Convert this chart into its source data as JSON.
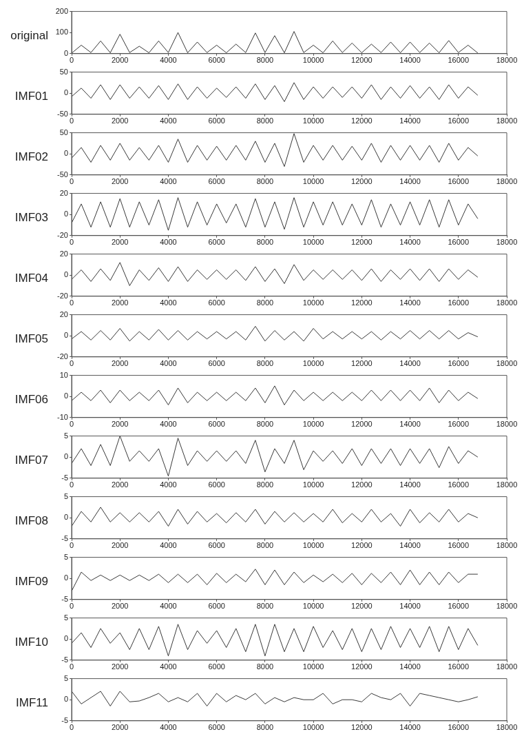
{
  "chart_data": [
    {
      "type": "line",
      "ylabel": "original",
      "color": "#222222",
      "xlim": [
        0,
        18000
      ],
      "xticks": [
        0,
        2000,
        4000,
        6000,
        8000,
        10000,
        12000,
        14000,
        16000,
        18000
      ],
      "ylim": [
        0,
        200
      ],
      "yticks": [
        0,
        100,
        200
      ],
      "x": [
        0,
        400,
        800,
        1200,
        1600,
        2000,
        2400,
        2800,
        3200,
        3600,
        4000,
        4400,
        4800,
        5200,
        5600,
        6000,
        6400,
        6800,
        7200,
        7600,
        8000,
        8400,
        8800,
        9200,
        9600,
        10000,
        10400,
        10800,
        11200,
        11600,
        12000,
        12400,
        12800,
        13200,
        13600,
        14000,
        14400,
        14800,
        15200,
        15600,
        16000,
        16400,
        16800
      ],
      "values": [
        2,
        40,
        5,
        60,
        4,
        92,
        5,
        35,
        4,
        60,
        5,
        100,
        4,
        55,
        5,
        40,
        4,
        45,
        5,
        98,
        5,
        85,
        4,
        105,
        5,
        40,
        4,
        60,
        5,
        50,
        4,
        45,
        5,
        55,
        4,
        55,
        5,
        50,
        4,
        62,
        5,
        40,
        3
      ]
    },
    {
      "type": "line",
      "ylabel": "IMF01",
      "color": "#222222",
      "xlim": [
        0,
        18000
      ],
      "xticks": [
        0,
        2000,
        4000,
        6000,
        8000,
        10000,
        12000,
        14000,
        16000,
        18000
      ],
      "ylim": [
        -50,
        50
      ],
      "yticks": [
        -50,
        0,
        50
      ],
      "x": [
        0,
        400,
        800,
        1200,
        1600,
        2000,
        2400,
        2800,
        3200,
        3600,
        4000,
        4400,
        4800,
        5200,
        5600,
        6000,
        6400,
        6800,
        7200,
        7600,
        8000,
        8400,
        8800,
        9200,
        9600,
        10000,
        10400,
        10800,
        11200,
        11600,
        12000,
        12400,
        12800,
        13200,
        13600,
        14000,
        14400,
        14800,
        15200,
        15600,
        16000,
        16400,
        16800
      ],
      "values": [
        -8,
        12,
        -12,
        20,
        -15,
        20,
        -12,
        15,
        -12,
        18,
        -15,
        22,
        -15,
        15,
        -12,
        12,
        -10,
        15,
        -12,
        22,
        -15,
        18,
        -20,
        25,
        -15,
        15,
        -12,
        15,
        -10,
        15,
        -12,
        20,
        -15,
        15,
        -12,
        18,
        -12,
        15,
        -15,
        20,
        -12,
        15,
        -5
      ]
    },
    {
      "type": "line",
      "ylabel": "IMF02",
      "color": "#222222",
      "xlim": [
        0,
        18000
      ],
      "xticks": [
        0,
        2000,
        4000,
        6000,
        8000,
        10000,
        12000,
        14000,
        16000,
        18000
      ],
      "ylim": [
        -50,
        50
      ],
      "yticks": [
        -50,
        0,
        50
      ],
      "x": [
        0,
        400,
        800,
        1200,
        1600,
        2000,
        2400,
        2800,
        3200,
        3600,
        4000,
        4400,
        4800,
        5200,
        5600,
        6000,
        6400,
        6800,
        7200,
        7600,
        8000,
        8400,
        8800,
        9200,
        9600,
        10000,
        10400,
        10800,
        11200,
        11600,
        12000,
        12400,
        12800,
        13200,
        13600,
        14000,
        14400,
        14800,
        15200,
        15600,
        16000,
        16400,
        16800
      ],
      "values": [
        -10,
        15,
        -20,
        20,
        -15,
        25,
        -15,
        15,
        -15,
        20,
        -20,
        35,
        -20,
        20,
        -15,
        18,
        -15,
        20,
        -15,
        30,
        -20,
        25,
        -30,
        48,
        -20,
        20,
        -15,
        20,
        -15,
        18,
        -15,
        25,
        -20,
        20,
        -15,
        20,
        -15,
        20,
        -20,
        25,
        -15,
        15,
        -5
      ]
    },
    {
      "type": "line",
      "ylabel": "IMF03",
      "color": "#222222",
      "xlim": [
        0,
        18000
      ],
      "xticks": [
        0,
        2000,
        4000,
        6000,
        8000,
        10000,
        12000,
        14000,
        16000,
        18000
      ],
      "ylim": [
        -20,
        20
      ],
      "yticks": [
        -20,
        0,
        20
      ],
      "x": [
        0,
        400,
        800,
        1200,
        1600,
        2000,
        2400,
        2800,
        3200,
        3600,
        4000,
        4400,
        4800,
        5200,
        5600,
        6000,
        6400,
        6800,
        7200,
        7600,
        8000,
        8400,
        8800,
        9200,
        9600,
        10000,
        10400,
        10800,
        11200,
        11600,
        12000,
        12400,
        12800,
        13200,
        13600,
        14000,
        14400,
        14800,
        15200,
        15600,
        16000,
        16400,
        16800
      ],
      "values": [
        -8,
        10,
        -12,
        12,
        -12,
        15,
        -12,
        12,
        -10,
        14,
        -15,
        16,
        -12,
        12,
        -10,
        10,
        -8,
        10,
        -12,
        15,
        -12,
        12,
        -14,
        16,
        -12,
        12,
        -10,
        12,
        -10,
        10,
        -10,
        14,
        -12,
        10,
        -10,
        12,
        -10,
        14,
        -12,
        14,
        -10,
        10,
        -4
      ]
    },
    {
      "type": "line",
      "ylabel": "IMF04",
      "color": "#222222",
      "xlim": [
        0,
        18000
      ],
      "xticks": [
        0,
        2000,
        4000,
        6000,
        8000,
        10000,
        12000,
        14000,
        16000,
        18000
      ],
      "ylim": [
        -20,
        20
      ],
      "yticks": [
        -20,
        0,
        20
      ],
      "x": [
        0,
        400,
        800,
        1200,
        1600,
        2000,
        2400,
        2800,
        3200,
        3600,
        4000,
        4400,
        4800,
        5200,
        5600,
        6000,
        6400,
        6800,
        7200,
        7600,
        8000,
        8400,
        8800,
        9200,
        9600,
        10000,
        10400,
        10800,
        11200,
        11600,
        12000,
        12400,
        12800,
        13200,
        13600,
        14000,
        14400,
        14800,
        15200,
        15600,
        16000,
        16400,
        16800
      ],
      "values": [
        -4,
        5,
        -6,
        6,
        -5,
        12,
        -10,
        5,
        -5,
        7,
        -6,
        8,
        -6,
        5,
        -4,
        5,
        -4,
        5,
        -5,
        8,
        -6,
        6,
        -8,
        10,
        -5,
        5,
        -4,
        5,
        -4,
        5,
        -5,
        6,
        -6,
        5,
        -4,
        6,
        -5,
        6,
        -6,
        6,
        -4,
        5,
        -2
      ]
    },
    {
      "type": "line",
      "ylabel": "IMF05",
      "color": "#222222",
      "xlim": [
        0,
        18000
      ],
      "xticks": [
        0,
        2000,
        4000,
        6000,
        8000,
        10000,
        12000,
        14000,
        16000,
        18000
      ],
      "ylim": [
        -20,
        20
      ],
      "yticks": [
        -20,
        0,
        20
      ],
      "x": [
        0,
        400,
        800,
        1200,
        1600,
        2000,
        2400,
        2800,
        3200,
        3600,
        4000,
        4400,
        4800,
        5200,
        5600,
        6000,
        6400,
        6800,
        7200,
        7600,
        8000,
        8400,
        8800,
        9200,
        9600,
        10000,
        10400,
        10800,
        11200,
        11600,
        12000,
        12400,
        12800,
        13200,
        13600,
        14000,
        14400,
        14800,
        15200,
        15600,
        16000,
        16400,
        16800
      ],
      "values": [
        -3,
        4,
        -4,
        5,
        -4,
        7,
        -5,
        4,
        -4,
        6,
        -4,
        5,
        -4,
        4,
        -3,
        4,
        -3,
        4,
        -4,
        9,
        -5,
        5,
        -4,
        4,
        -5,
        7,
        -3,
        4,
        -3,
        4,
        -3,
        4,
        -4,
        4,
        -3,
        5,
        -3,
        5,
        -3,
        5,
        -3,
        3,
        -1
      ]
    },
    {
      "type": "line",
      "ylabel": "IMF06",
      "color": "#222222",
      "xlim": [
        0,
        18000
      ],
      "xticks": [
        0,
        2000,
        4000,
        6000,
        8000,
        10000,
        12000,
        14000,
        16000,
        18000
      ],
      "ylim": [
        -10,
        10
      ],
      "yticks": [
        -10,
        0,
        10
      ],
      "x": [
        0,
        400,
        800,
        1200,
        1600,
        2000,
        2400,
        2800,
        3200,
        3600,
        4000,
        4400,
        4800,
        5200,
        5600,
        6000,
        6400,
        6800,
        7200,
        7600,
        8000,
        8400,
        8800,
        9200,
        9600,
        10000,
        10400,
        10800,
        11200,
        11600,
        12000,
        12400,
        12800,
        13200,
        13600,
        14000,
        14400,
        14800,
        15200,
        15600,
        16000,
        16400,
        16800
      ],
      "values": [
        -2,
        2,
        -2,
        3,
        -3,
        3,
        -2,
        2,
        -2,
        3,
        -4,
        4,
        -3,
        2,
        -2,
        2,
        -2,
        2,
        -2,
        4,
        -3,
        5,
        -4,
        3,
        -2,
        2,
        -2,
        2,
        -2,
        2,
        -2,
        3,
        -2,
        3,
        -2,
        3,
        -2,
        4,
        -3,
        3,
        -2,
        2,
        -1
      ]
    },
    {
      "type": "line",
      "ylabel": "IMF07",
      "color": "#222222",
      "xlim": [
        0,
        18000
      ],
      "xticks": [
        0,
        2000,
        4000,
        6000,
        8000,
        10000,
        12000,
        14000,
        16000,
        18000
      ],
      "ylim": [
        -5,
        5
      ],
      "yticks": [
        -5,
        0,
        5
      ],
      "x": [
        0,
        400,
        800,
        1200,
        1600,
        2000,
        2400,
        2800,
        3200,
        3600,
        4000,
        4400,
        4800,
        5200,
        5600,
        6000,
        6400,
        6800,
        7200,
        7600,
        8000,
        8400,
        8800,
        9200,
        9600,
        10000,
        10400,
        10800,
        11200,
        11600,
        12000,
        12400,
        12800,
        13200,
        13600,
        14000,
        14400,
        14800,
        15200,
        15600,
        16000,
        16400,
        16800
      ],
      "values": [
        -1.5,
        2,
        -2,
        3,
        -2,
        5,
        -1,
        1.5,
        -1,
        2,
        -4.5,
        4.5,
        -2,
        1.5,
        -1,
        1.5,
        -1,
        1.5,
        -1.5,
        4,
        -3.5,
        2,
        -1.5,
        4,
        -3,
        1.5,
        -1,
        1.5,
        -1.5,
        2,
        -2,
        2,
        -1.5,
        2,
        -2,
        2,
        -1.5,
        2,
        -2.5,
        2.5,
        -1.5,
        1.5,
        0
      ]
    },
    {
      "type": "line",
      "ylabel": "IMF08",
      "color": "#222222",
      "xlim": [
        0,
        18000
      ],
      "xticks": [
        0,
        2000,
        4000,
        6000,
        8000,
        10000,
        12000,
        14000,
        16000,
        18000
      ],
      "ylim": [
        -5,
        5
      ],
      "yticks": [
        -5,
        0,
        5
      ],
      "x": [
        0,
        400,
        800,
        1200,
        1600,
        2000,
        2400,
        2800,
        3200,
        3600,
        4000,
        4400,
        4800,
        5200,
        5600,
        6000,
        6400,
        6800,
        7200,
        7600,
        8000,
        8400,
        8800,
        9200,
        9600,
        10000,
        10400,
        10800,
        11200,
        11600,
        12000,
        12400,
        12800,
        13200,
        13600,
        14000,
        14400,
        14800,
        15200,
        15600,
        16000,
        16400,
        16800
      ],
      "values": [
        -2,
        1.5,
        -1,
        2.5,
        -1,
        1.2,
        -1,
        1.2,
        -1,
        1.5,
        -2,
        2,
        -1.5,
        1.5,
        -1,
        1,
        -1.2,
        1.2,
        -1,
        2,
        -1.5,
        1.5,
        -1,
        1.2,
        -1,
        1,
        -1,
        2,
        -1.2,
        1,
        -1,
        2,
        -1,
        1,
        -2,
        2,
        -1.2,
        1.2,
        -1,
        2,
        -1,
        1,
        0
      ]
    },
    {
      "type": "line",
      "ylabel": "IMF09",
      "color": "#222222",
      "xlim": [
        0,
        18000
      ],
      "xticks": [
        0,
        2000,
        4000,
        6000,
        8000,
        10000,
        12000,
        14000,
        16000,
        18000
      ],
      "ylim": [
        -5,
        5
      ],
      "yticks": [
        -5,
        0,
        5
      ],
      "x": [
        0,
        400,
        800,
        1200,
        1600,
        2000,
        2400,
        2800,
        3200,
        3600,
        4000,
        4400,
        4800,
        5200,
        5600,
        6000,
        6400,
        6800,
        7200,
        7600,
        8000,
        8400,
        8800,
        9200,
        9600,
        10000,
        10400,
        10800,
        11200,
        11600,
        12000,
        12400,
        12800,
        13200,
        13600,
        14000,
        14400,
        14800,
        15200,
        15600,
        16000,
        16400,
        16800
      ],
      "values": [
        -3,
        1.5,
        -0.5,
        0.8,
        -0.5,
        0.8,
        -0.5,
        0.8,
        -0.5,
        1,
        -1,
        1,
        -1,
        1,
        -1.5,
        1.2,
        -1,
        1,
        -0.8,
        2.2,
        -1.5,
        2,
        -1.5,
        1.5,
        -1,
        0.8,
        -0.8,
        1,
        -1,
        1.2,
        -1.5,
        1.2,
        -1,
        1.5,
        -1.5,
        2,
        -1.5,
        1.5,
        -1.5,
        1.5,
        -1,
        1,
        1
      ]
    },
    {
      "type": "line",
      "ylabel": "IMF10",
      "color": "#222222",
      "xlim": [
        0,
        18000
      ],
      "xticks": [
        0,
        2000,
        4000,
        6000,
        8000,
        10000,
        12000,
        14000,
        16000,
        18000
      ],
      "ylim": [
        -5,
        5
      ],
      "yticks": [
        -5,
        0,
        5
      ],
      "x": [
        0,
        400,
        800,
        1200,
        1600,
        2000,
        2400,
        2800,
        3200,
        3600,
        4000,
        4400,
        4800,
        5200,
        5600,
        6000,
        6400,
        6800,
        7200,
        7600,
        8000,
        8400,
        8800,
        9200,
        9600,
        10000,
        10400,
        10800,
        11200,
        11600,
        12000,
        12400,
        12800,
        13200,
        13600,
        14000,
        14400,
        14800,
        15200,
        15600,
        16000,
        16400,
        16800
      ],
      "values": [
        -1,
        1.5,
        -2,
        2.5,
        -1,
        1.5,
        -2.5,
        2.5,
        -2.5,
        3,
        -4,
        3.5,
        -2.5,
        2,
        -1,
        2,
        -2,
        2.5,
        -3,
        3.5,
        -4,
        3.5,
        -3,
        2.5,
        -3,
        3,
        -2,
        2,
        -2.5,
        2.5,
        -3,
        2.5,
        -2.5,
        3,
        -2,
        2.5,
        -2,
        3,
        -3,
        3,
        -2.5,
        2.5,
        -1.5
      ]
    },
    {
      "type": "line",
      "ylabel": "IMF11",
      "color": "#222222",
      "xlim": [
        0,
        18000
      ],
      "xticks": [
        0,
        2000,
        4000,
        6000,
        8000,
        10000,
        12000,
        14000,
        16000,
        18000
      ],
      "ylim": [
        -5,
        5
      ],
      "yticks": [
        -5,
        0,
        5
      ],
      "x": [
        0,
        400,
        800,
        1200,
        1600,
        2000,
        2400,
        2800,
        3200,
        3600,
        4000,
        4400,
        4800,
        5200,
        5600,
        6000,
        6400,
        6800,
        7200,
        7600,
        8000,
        8400,
        8800,
        9200,
        9600,
        10000,
        10400,
        10800,
        11200,
        11600,
        12000,
        12400,
        12800,
        13200,
        13600,
        14000,
        14400,
        14800,
        15200,
        15600,
        16000,
        16400,
        16800
      ],
      "values": [
        2,
        -1,
        0.5,
        2,
        -1.5,
        2,
        -0.5,
        -0.3,
        0.5,
        1.5,
        -0.5,
        0.5,
        -0.5,
        1.5,
        -1.5,
        1.5,
        -0.5,
        1,
        0,
        1.5,
        -1,
        0.5,
        -0.5,
        0.5,
        0,
        0,
        1.5,
        -1,
        0,
        0,
        -0.5,
        1.5,
        0.5,
        0,
        1.5,
        -1.5,
        1.5,
        1,
        0.5,
        0,
        -0.5,
        0,
        0.7
      ]
    }
  ]
}
